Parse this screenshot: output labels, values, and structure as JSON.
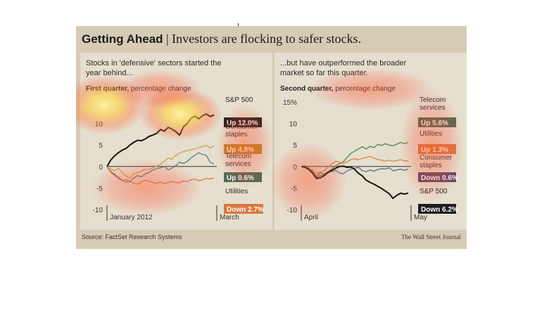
{
  "header": {
    "bold": "Getting Ahead",
    "separator": "|",
    "title": "Investors are flocking to safer stocks."
  },
  "footer": {
    "source": "Source: FactSet Research Systems",
    "publisher": "The Wall Street Journal"
  },
  "colors": {
    "sp500": "#1a1a1a",
    "consumer_staples": "#c79a3c",
    "telecom": "#4f7a5a",
    "utilities": "#d97a43",
    "consumer_staples_q2": "#d18a4c",
    "telecom_q2": "#4f8a56",
    "utilities_q2": "#5a6a86"
  },
  "chart_data": [
    {
      "type": "line",
      "subtitle": "Stocks in 'defensive' sectors started the year behind...",
      "title_bold": "First quarter,",
      "title_rest": "percentage change",
      "yticks": [
        "",
        "10",
        "5",
        "0",
        "-5",
        "-10"
      ],
      "ylim": [
        -10,
        15
      ],
      "xlabels": [
        "January 2012",
        "March"
      ],
      "series": [
        {
          "key": "sp500",
          "name": "S&P 500",
          "label": "Up 12.0%",
          "box": "#222222",
          "values": [
            0,
            1.5,
            2.5,
            3.2,
            3.8,
            4.2,
            5.0,
            5.6,
            6.1,
            6.0,
            6.4,
            7.0,
            7.3,
            7.7,
            8.6,
            8.2,
            9.1,
            8.7,
            8.1,
            7.3,
            9.2,
            10.0,
            11.2,
            11.7,
            11.1,
            11.8,
            12.2,
            11.6,
            12.0
          ]
        },
        {
          "key": "consumer_staples",
          "name": "Consumer staples",
          "label": "Up 4.8%",
          "box": "#b88a2a",
          "values": [
            0,
            -0.6,
            -1.0,
            -0.4,
            -1.5,
            -2.2,
            -2.7,
            -1.7,
            -1.4,
            -1.1,
            -0.6,
            -0.7,
            -0.3,
            0.1,
            0.5,
            1.2,
            2.0,
            1.7,
            2.6,
            3.1,
            3.5,
            3.7,
            3.9,
            4.1,
            4.4,
            4.6,
            4.9,
            4.3,
            4.8
          ]
        },
        {
          "key": "telecom",
          "name": "Telecom services",
          "label": "Up 0.6%",
          "box": "#4f6a57",
          "values": [
            0,
            -1.2,
            -1.8,
            -2.5,
            -3.2,
            -3.6,
            -3.5,
            -2.7,
            -2.1,
            -2.4,
            -1.7,
            -1.4,
            -0.8,
            -0.5,
            -0.3,
            0.0,
            -0.8,
            -0.4,
            0.2,
            1.0,
            0.7,
            1.2,
            2.0,
            2.6,
            3.2,
            2.8,
            2.6,
            1.0,
            0.6
          ]
        },
        {
          "key": "utilities",
          "name": "Utilities",
          "label": "Down 2.7%",
          "box": "#d9783f",
          "values": [
            0,
            -1.4,
            -2.1,
            -2.8,
            -3.3,
            -3.0,
            -3.5,
            -3.9,
            -4.1,
            -3.6,
            -3.2,
            -3.4,
            -3.7,
            -3.9,
            -3.6,
            -4.0,
            -3.7,
            -3.5,
            -3.7,
            -3.8,
            -3.3,
            -3.5,
            -3.1,
            -2.9,
            -3.3,
            -3.1,
            -2.8,
            -2.9,
            -2.7
          ]
        }
      ]
    },
    {
      "type": "line",
      "subtitle": "...but have outperformed the broader market so far this quarter.",
      "title_bold": "Second quarter,",
      "title_rest": "percentage change",
      "yticks": [
        "15%",
        "10",
        "5",
        "0",
        "-5",
        "-10"
      ],
      "ylim": [
        -10,
        15
      ],
      "xlabels": [
        "April",
        "May"
      ],
      "series": [
        {
          "key": "telecom_q2",
          "name": "Telecom services",
          "label": "Up 5.6%",
          "box": "#4f6a57",
          "values": [
            0,
            0.2,
            -0.4,
            -1.2,
            -2.3,
            -1.5,
            -1.7,
            -1.2,
            -0.6,
            0.2,
            0.6,
            1.1,
            2.1,
            3.1,
            3.6,
            4.1,
            4.6,
            4.1,
            4.7,
            4.4,
            5.1,
            4.9,
            5.3,
            5.0,
            4.8,
            5.2,
            5.6,
            5.3,
            5.6
          ]
        },
        {
          "key": "consumer_staples_q2",
          "name": "Utilities",
          "label": "Up 1.3%",
          "box": "#d9783f",
          "values": [
            0,
            0.0,
            -0.6,
            -0.8,
            -1.6,
            -1.3,
            -0.9,
            -0.2,
            0.6,
            1.2,
            1.0,
            0.7,
            1.1,
            1.6,
            1.8,
            1.6,
            1.9,
            2.1,
            2.3,
            2.0,
            1.6,
            1.5,
            1.2,
            1.5,
            1.2,
            1.4,
            1.6,
            1.3,
            1.3
          ]
        },
        {
          "key": "utilities_q2",
          "name": "Consumer staples",
          "label": "Down 0.6%",
          "box": "#5a4b67",
          "values": [
            0,
            -0.1,
            -0.7,
            -1.3,
            -2.6,
            -2.1,
            -1.9,
            -1.3,
            -1.2,
            -0.9,
            -1.5,
            -1.7,
            -1.0,
            -0.6,
            -0.4,
            -0.2,
            -1.0,
            -1.2,
            -0.8,
            -1.1,
            -0.7,
            -0.5,
            -0.6,
            -0.3,
            -1.0,
            -0.8,
            -0.6,
            -0.9,
            -0.6
          ]
        },
        {
          "key": "sp500",
          "name": "S&P 500",
          "label": "Down 6.2%",
          "box": "#1d1d1d",
          "values": [
            0,
            -0.2,
            -0.7,
            -1.6,
            -2.8,
            -2.6,
            -2.1,
            -1.4,
            -0.9,
            -0.4,
            0.0,
            0.1,
            -0.2,
            -0.1,
            -0.7,
            -1.6,
            -2.2,
            -3.2,
            -3.7,
            -4.1,
            -4.6,
            -5.1,
            -5.7,
            -6.3,
            -7.4,
            -6.7,
            -6.2,
            -6.4,
            -6.2
          ]
        }
      ]
    }
  ]
}
